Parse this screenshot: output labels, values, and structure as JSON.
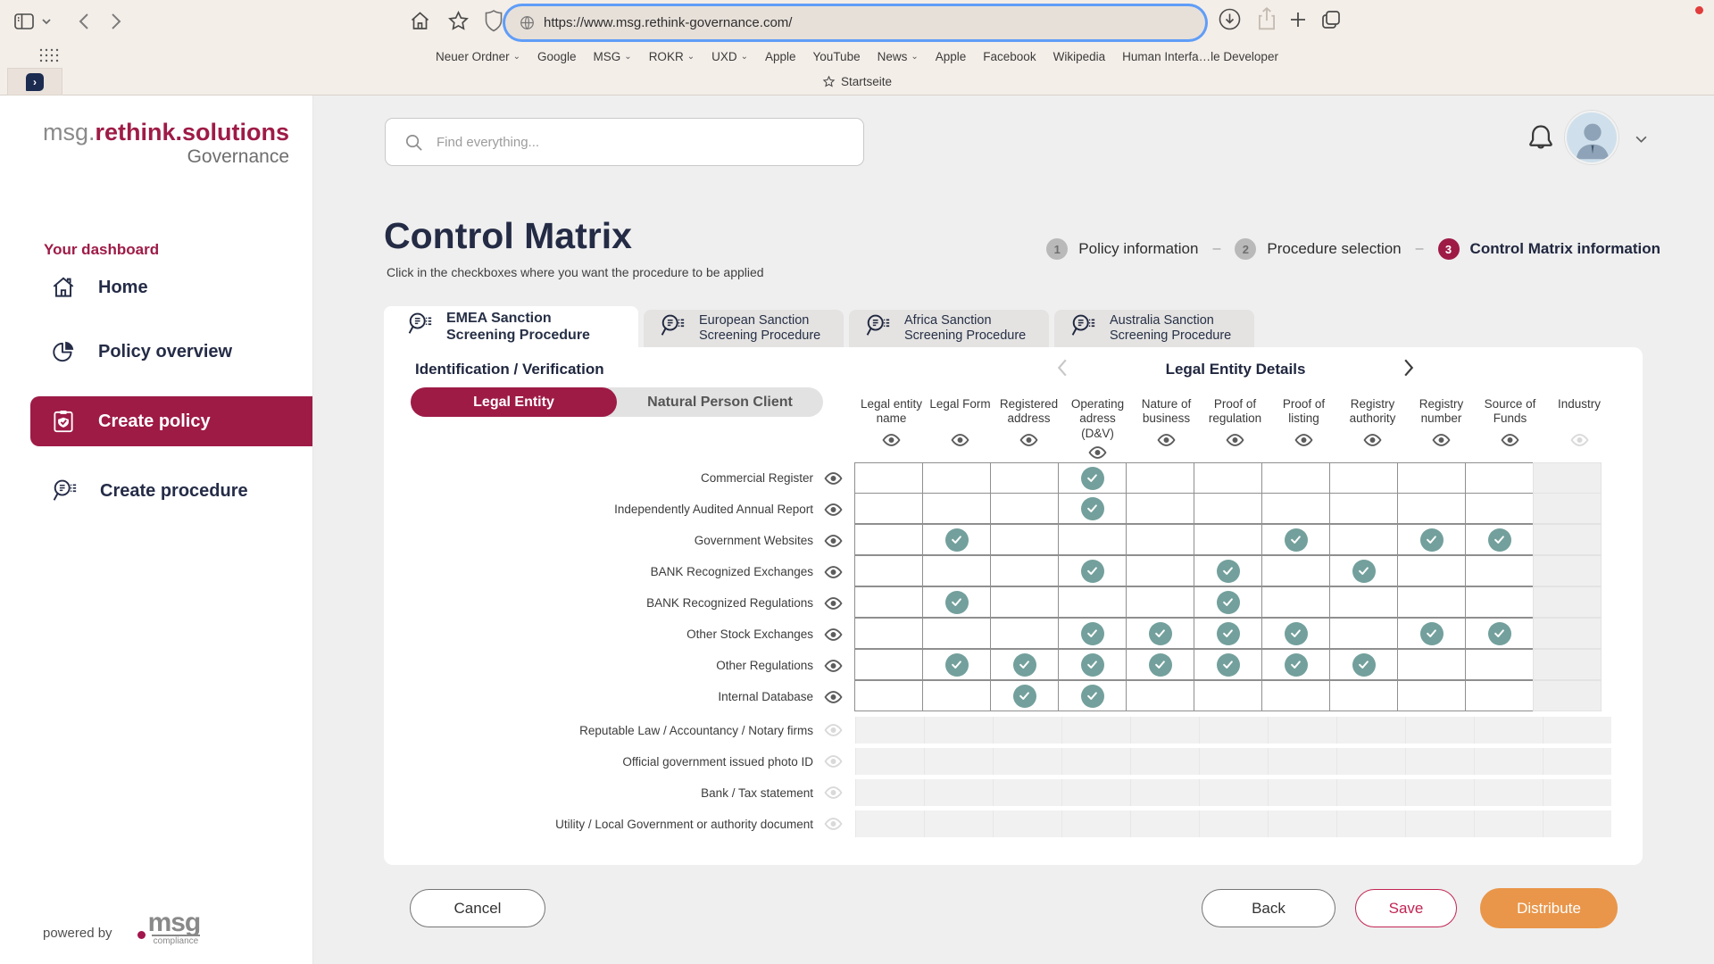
{
  "browser": {
    "url": "https://www.msg.rethink-governance.com/",
    "bookmarks": [
      {
        "label": "Neuer Ordner",
        "chevron": true
      },
      {
        "label": "Google",
        "chevron": false
      },
      {
        "label": "MSG",
        "chevron": true
      },
      {
        "label": "ROKR",
        "chevron": true
      },
      {
        "label": "UXD",
        "chevron": true
      },
      {
        "label": "Apple",
        "chevron": false
      },
      {
        "label": "YouTube",
        "chevron": false
      },
      {
        "label": "News",
        "chevron": true
      },
      {
        "label": "Apple",
        "chevron": false
      },
      {
        "label": "Facebook",
        "chevron": false
      },
      {
        "label": "Wikipedia",
        "chevron": false
      },
      {
        "label": "Human Interfa…le Developer",
        "chevron": false
      }
    ],
    "favorites_item": "Startseite"
  },
  "sidebar": {
    "logo": {
      "prefix": "msg.",
      "brand": "rethink.solutions",
      "product": "Governance"
    },
    "section_label": "Your dashboard",
    "items": [
      {
        "label": "Home",
        "icon": "home-icon",
        "active": false
      },
      {
        "label": "Policy overview",
        "icon": "pie-chart-icon",
        "active": false
      },
      {
        "label": "Create policy",
        "icon": "clipboard-shield-icon",
        "active": true
      },
      {
        "label": "Create procedure",
        "icon": "screening-icon",
        "active": false
      }
    ],
    "powered_by": "powered by",
    "powered_logo_word": "msg",
    "powered_logo_sub": "compliance"
  },
  "header": {
    "search_placeholder": "Find everything..."
  },
  "page": {
    "title": "Control Matrix",
    "subtitle": "Click in the checkboxes where you want the procedure to be applied",
    "steps": [
      {
        "num": "1",
        "label": "Policy information",
        "active": false
      },
      {
        "num": "2",
        "label": "Procedure selection",
        "active": false
      },
      {
        "num": "3",
        "label": "Control Matrix information",
        "active": true
      }
    ]
  },
  "tabs": [
    {
      "label": "EMEA Sanction Screening Procedure",
      "active": true
    },
    {
      "label": "European Sanction Screening Procedure",
      "active": false
    },
    {
      "label": "Africa Sanction Screening Procedure",
      "active": false
    },
    {
      "label": "Australia Sanction Screening Procedure",
      "active": false
    }
  ],
  "matrix": {
    "section_title": "Identification / Verification",
    "entity_toggle": [
      {
        "label": "Legal Entity",
        "active": true
      },
      {
        "label": "Natural Person Client",
        "active": false
      }
    ],
    "carousel_title": "Legal Entity Details",
    "columns": [
      {
        "label": "Legal entity name",
        "enabled": true
      },
      {
        "label": "Legal Form",
        "enabled": true
      },
      {
        "label": "Registered address",
        "enabled": true
      },
      {
        "label": "Operating adress (D&V)",
        "enabled": true
      },
      {
        "label": "Nature of business",
        "enabled": true
      },
      {
        "label": "Proof of regulation",
        "enabled": true
      },
      {
        "label": "Proof of listing",
        "enabled": true
      },
      {
        "label": "Registry authority",
        "enabled": true
      },
      {
        "label": "Registry number",
        "enabled": true
      },
      {
        "label": "Source of Funds",
        "enabled": true
      },
      {
        "label": "Industry",
        "enabled": false
      }
    ],
    "rows": [
      {
        "label": "Commercial Register",
        "enabled": true,
        "checks": [
          4
        ]
      },
      {
        "label": "Independently Audited Annual Report",
        "enabled": true,
        "checks": [
          4
        ]
      },
      {
        "label": "Government Websites",
        "enabled": true,
        "checks": [
          2,
          7,
          9,
          10
        ]
      },
      {
        "label": "BANK Recognized Exchanges",
        "enabled": true,
        "checks": [
          4,
          6,
          8
        ]
      },
      {
        "label": "BANK Recognized Regulations",
        "enabled": true,
        "checks": [
          2,
          6
        ]
      },
      {
        "label": "Other Stock Exchanges",
        "enabled": true,
        "checks": [
          4,
          5,
          6,
          7,
          9,
          10
        ]
      },
      {
        "label": "Other Regulations",
        "enabled": true,
        "checks": [
          2,
          3,
          4,
          5,
          6,
          7,
          8
        ]
      },
      {
        "label": "Internal Database",
        "enabled": true,
        "checks": [
          3,
          4
        ]
      },
      {
        "label": "Reputable Law / Accountancy / Notary firms",
        "enabled": false,
        "checks": []
      },
      {
        "label": "Official government issued photo ID",
        "enabled": false,
        "checks": []
      },
      {
        "label": "Bank / Tax statement",
        "enabled": false,
        "checks": []
      },
      {
        "label": "Utility / Local Government or authority document",
        "enabled": false,
        "checks": []
      }
    ]
  },
  "actions": {
    "cancel": "Cancel",
    "back": "Back",
    "save": "Save",
    "distribute": "Distribute"
  },
  "colors": {
    "accent": "#9e1b46",
    "check": "#73a09c",
    "distribute": "#e9964a",
    "save": "#c22553"
  }
}
